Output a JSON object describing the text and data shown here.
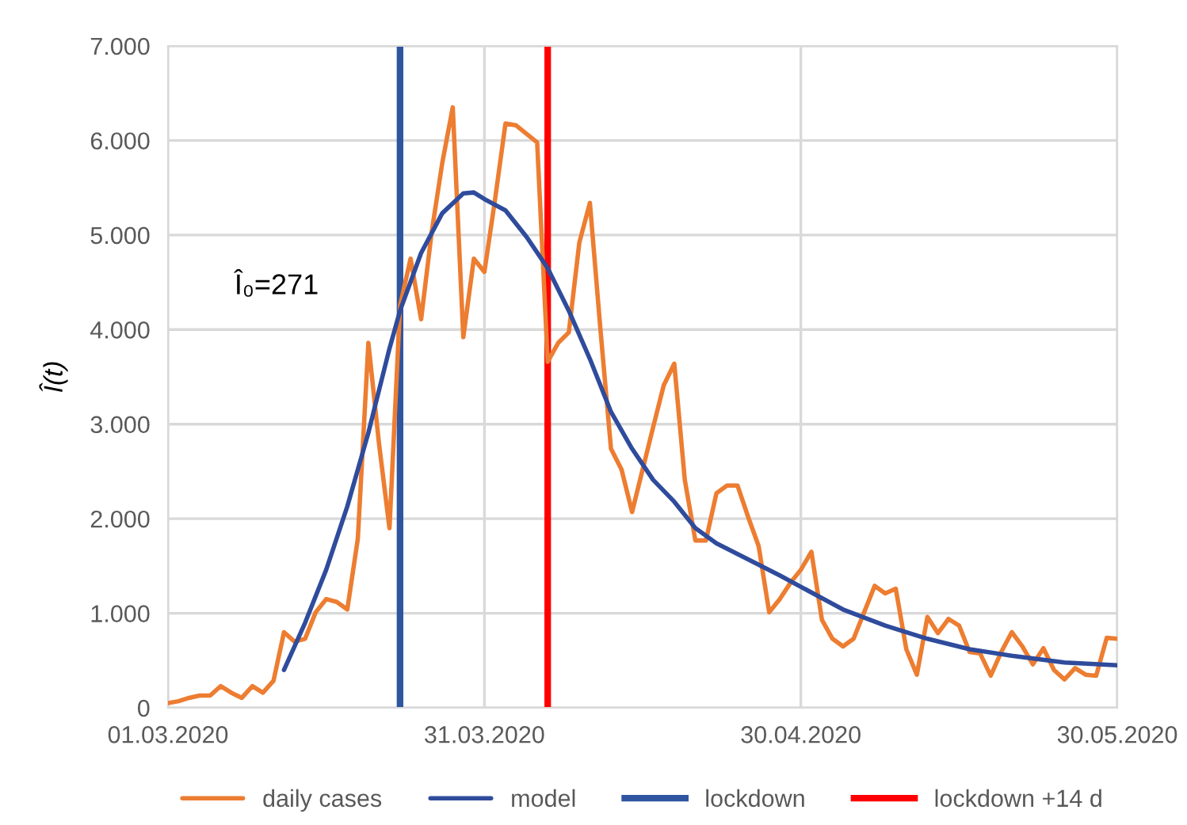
{
  "chart_data": {
    "type": "line",
    "x": [
      "2020-03-01",
      "2020-03-02",
      "2020-03-03",
      "2020-03-04",
      "2020-03-05",
      "2020-03-06",
      "2020-03-07",
      "2020-03-08",
      "2020-03-09",
      "2020-03-10",
      "2020-03-11",
      "2020-03-12",
      "2020-03-13",
      "2020-03-14",
      "2020-03-15",
      "2020-03-16",
      "2020-03-17",
      "2020-03-18",
      "2020-03-19",
      "2020-03-20",
      "2020-03-21",
      "2020-03-22",
      "2020-03-23",
      "2020-03-24",
      "2020-03-25",
      "2020-03-26",
      "2020-03-27",
      "2020-03-28",
      "2020-03-29",
      "2020-03-30",
      "2020-03-31",
      "2020-04-01",
      "2020-04-02",
      "2020-04-03",
      "2020-04-04",
      "2020-04-05",
      "2020-04-06",
      "2020-04-07",
      "2020-04-08",
      "2020-04-09",
      "2020-04-10",
      "2020-04-11",
      "2020-04-12",
      "2020-04-13",
      "2020-04-14",
      "2020-04-15",
      "2020-04-16",
      "2020-04-17",
      "2020-04-18",
      "2020-04-19",
      "2020-04-20",
      "2020-04-21",
      "2020-04-22",
      "2020-04-23",
      "2020-04-24",
      "2020-04-25",
      "2020-04-26",
      "2020-04-27",
      "2020-04-28",
      "2020-04-29",
      "2020-04-30",
      "2020-05-01",
      "2020-05-02",
      "2020-05-03",
      "2020-05-04",
      "2020-05-05",
      "2020-05-06",
      "2020-05-07",
      "2020-05-08",
      "2020-05-09",
      "2020-05-10",
      "2020-05-11",
      "2020-05-12",
      "2020-05-13",
      "2020-05-14",
      "2020-05-15",
      "2020-05-16",
      "2020-05-17",
      "2020-05-18",
      "2020-05-19",
      "2020-05-20",
      "2020-05-21",
      "2020-05-22",
      "2020-05-23",
      "2020-05-24",
      "2020-05-25",
      "2020-05-26",
      "2020-05-27",
      "2020-05-28",
      "2020-05-29",
      "2020-05-30"
    ],
    "series": [
      {
        "name": "daily cases",
        "color": "#ed7d31",
        "values": [
          50,
          70,
          105,
          130,
          130,
          230,
          160,
          105,
          230,
          160,
          285,
          800,
          700,
          730,
          1010,
          1150,
          1120,
          1040,
          1790,
          3860,
          2800,
          1900,
          4250,
          4750,
          4110,
          5030,
          5760,
          6350,
          3920,
          4750,
          4610,
          5370,
          6180,
          6160,
          6070,
          5980,
          3660,
          3860,
          3970,
          4920,
          5340,
          4000,
          2740,
          2520,
          2070,
          2520,
          2970,
          3410,
          3640,
          2410,
          1770,
          1770,
          2270,
          2350,
          2350,
          2020,
          1710,
          1010,
          1150,
          1320,
          1460,
          1650,
          930,
          730,
          650,
          730,
          1010,
          1290,
          1210,
          1260,
          620,
          350,
          960,
          790,
          940,
          870,
          590,
          575,
          340,
          590,
          800,
          650,
          460,
          630,
          400,
          300,
          420,
          350,
          340,
          740,
          730
        ]
      },
      {
        "name": "model",
        "color": "#2f4b9c",
        "x": [
          "2020-03-12",
          "2020-03-14",
          "2020-03-16",
          "2020-03-18",
          "2020-03-20",
          "2020-03-22",
          "2020-03-23",
          "2020-03-25",
          "2020-03-27",
          "2020-03-29",
          "2020-03-30",
          "2020-03-31",
          "2020-04-02",
          "2020-04-04",
          "2020-04-06",
          "2020-04-08",
          "2020-04-10",
          "2020-04-12",
          "2020-04-14",
          "2020-04-16",
          "2020-04-18",
          "2020-04-20",
          "2020-04-22",
          "2020-04-25",
          "2020-04-28",
          "2020-05-04",
          "2020-05-08",
          "2020-05-12",
          "2020-05-16",
          "2020-05-20",
          "2020-05-25",
          "2020-05-30"
        ],
        "values": [
          400,
          900,
          1460,
          2130,
          2910,
          3800,
          4200,
          4810,
          5230,
          5440,
          5450,
          5380,
          5260,
          4980,
          4650,
          4200,
          3690,
          3130,
          2740,
          2410,
          2180,
          1900,
          1740,
          1570,
          1400,
          1040,
          870,
          730,
          620,
          550,
          480,
          450
        ]
      }
    ],
    "xlim": [
      "2020-03-01",
      "2020-05-30"
    ],
    "xticks": [
      {
        "value": "2020-03-01",
        "label": "01.03.2020"
      },
      {
        "value": "2020-03-31",
        "label": "31.03.2020"
      },
      {
        "value": "2020-04-30",
        "label": "30.04.2020"
      },
      {
        "value": "2020-05-30",
        "label": "30.05.2020"
      }
    ],
    "ylim": [
      0,
      7000
    ],
    "yticks": [
      0,
      {
        "value": 1000,
        "label": "1.000"
      },
      {
        "value": 2000,
        "label": "2.000"
      },
      {
        "value": 3000,
        "label": "3.000"
      },
      {
        "value": 4000,
        "label": "4.000"
      },
      {
        "value": 5000,
        "label": "5.000"
      },
      {
        "value": 6000,
        "label": "6.000"
      },
      {
        "value": 7000,
        "label": "7.000"
      }
    ],
    "ylabel": "Î(t)",
    "annotations": [
      "Î₀=271"
    ],
    "ref_lines": [
      {
        "axis": "x",
        "value": "2020-03-23",
        "label": "lockdown",
        "color": "#2f55a0"
      },
      {
        "axis": "x",
        "value": "2020-04-06",
        "label": "lockdown +14 d",
        "color": "#ff0000"
      }
    ],
    "grid": true,
    "legend": "bottom",
    "marker": "none",
    "line_style": "solid"
  }
}
